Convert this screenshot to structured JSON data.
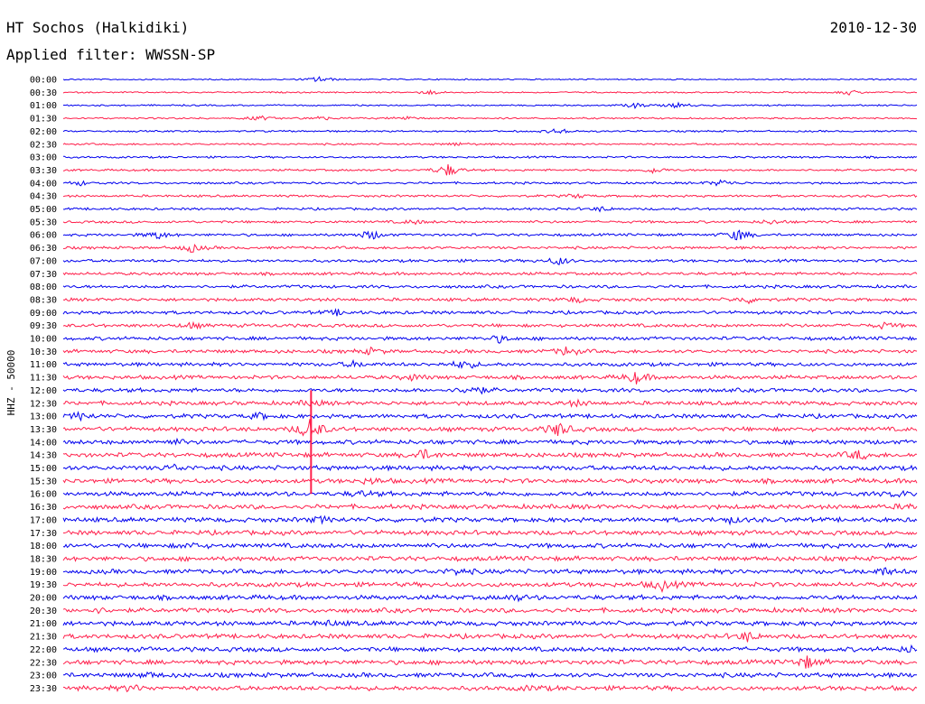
{
  "header": {
    "station": "HT Sochos (Halkidiki)",
    "date": "2010-12-30",
    "filter": "Applied filter: WWSSN-SP"
  },
  "chart_data": {
    "type": "line",
    "ylabel": "HHZ - 50000",
    "colors": {
      "even": "#0000ee",
      "odd": "#ff1f4b"
    },
    "rows": [
      {
        "time": "00:00",
        "events": [
          [
            0.3,
            1.6
          ]
        ]
      },
      {
        "time": "00:30",
        "events": [
          [
            0.43,
            1.0
          ],
          [
            0.92,
            1.2
          ]
        ]
      },
      {
        "time": "01:00",
        "events": [
          [
            0.67,
            1.3
          ],
          [
            0.72,
            1.3
          ]
        ]
      },
      {
        "time": "01:30",
        "events": [
          [
            0.23,
            1.2
          ],
          [
            0.3,
            1.0
          ],
          [
            0.4,
            1.0
          ]
        ]
      },
      {
        "time": "02:00",
        "events": [
          [
            0.58,
            1.5
          ]
        ]
      },
      {
        "time": "02:30",
        "events": [
          [
            0.46,
            0.8
          ]
        ]
      },
      {
        "time": "03:00",
        "events": []
      },
      {
        "time": "03:30",
        "events": [
          [
            0.45,
            3.2
          ],
          [
            0.69,
            1.4
          ]
        ]
      },
      {
        "time": "04:00",
        "events": [
          [
            0.77,
            1.6
          ],
          [
            0.02,
            1.0
          ]
        ]
      },
      {
        "time": "04:30",
        "events": [
          [
            0.6,
            1.0
          ]
        ]
      },
      {
        "time": "05:00",
        "events": [
          [
            0.63,
            1.0
          ]
        ]
      },
      {
        "time": "05:30",
        "events": [
          [
            0.41,
            1.0
          ],
          [
            0.83,
            1.0
          ]
        ]
      },
      {
        "time": "06:00",
        "events": [
          [
            0.11,
            2.0
          ],
          [
            0.36,
            2.4
          ],
          [
            0.79,
            3.0
          ]
        ]
      },
      {
        "time": "06:30",
        "events": [
          [
            0.15,
            2.0
          ]
        ]
      },
      {
        "time": "07:00",
        "events": [
          [
            0.58,
            2.0
          ]
        ]
      },
      {
        "time": "07:30",
        "events": []
      },
      {
        "time": "08:00",
        "events": []
      },
      {
        "time": "08:30",
        "events": [
          [
            0.8,
            1.6
          ],
          [
            0.6,
            1.2
          ]
        ]
      },
      {
        "time": "09:00",
        "events": [
          [
            0.32,
            1.2
          ]
        ]
      },
      {
        "time": "09:30",
        "events": [
          [
            0.15,
            1.2
          ],
          [
            0.96,
            1.3
          ]
        ]
      },
      {
        "time": "10:00",
        "events": [
          [
            0.51,
            1.6
          ]
        ]
      },
      {
        "time": "10:30",
        "events": [
          [
            0.59,
            2.4
          ],
          [
            0.36,
            1.3
          ]
        ]
      },
      {
        "time": "11:00",
        "events": [
          [
            0.47,
            2.2
          ],
          [
            0.34,
            1.2
          ]
        ]
      },
      {
        "time": "11:30",
        "events": [
          [
            0.67,
            2.8
          ],
          [
            0.41,
            1.3
          ]
        ]
      },
      {
        "time": "12:00",
        "events": [
          [
            0.48,
            2.6
          ]
        ]
      },
      {
        "time": "12:30",
        "events": [
          [
            0.29,
            1.3
          ],
          [
            0.6,
            1.2
          ]
        ]
      },
      {
        "time": "13:00",
        "events": [
          [
            0.02,
            1.6
          ],
          [
            0.23,
            1.3
          ]
        ]
      },
      {
        "time": "13:30",
        "events": [
          [
            0.29,
            6.0
          ],
          [
            0.58,
            3.6
          ]
        ]
      },
      {
        "time": "14:00",
        "events": [
          [
            0.13,
            1.0
          ]
        ]
      },
      {
        "time": "14:30",
        "events": [
          [
            0.42,
            2.6
          ],
          [
            0.93,
            2.2
          ]
        ]
      },
      {
        "time": "15:00",
        "events": [
          [
            0.13,
            1.2
          ]
        ]
      },
      {
        "time": "15:30",
        "events": [
          [
            0.36,
            1.2
          ]
        ]
      },
      {
        "time": "16:00",
        "events": [
          [
            0.35,
            1.2
          ],
          [
            0.98,
            1.3
          ]
        ]
      },
      {
        "time": "16:30",
        "events": [
          [
            0.99,
            1.4
          ]
        ]
      },
      {
        "time": "17:00",
        "events": [
          [
            0.3,
            1.3
          ],
          [
            0.78,
            1.2
          ]
        ]
      },
      {
        "time": "17:30",
        "events": []
      },
      {
        "time": "18:00",
        "events": [
          [
            0.15,
            1.0
          ]
        ]
      },
      {
        "time": "18:30",
        "events": []
      },
      {
        "time": "19:00",
        "events": [
          [
            0.46,
            1.3
          ],
          [
            0.96,
            1.6
          ]
        ]
      },
      {
        "time": "19:30",
        "events": [
          [
            0.7,
            2.6
          ]
        ]
      },
      {
        "time": "20:00",
        "events": [
          [
            0.53,
            1.2
          ]
        ]
      },
      {
        "time": "20:30",
        "events": [
          [
            0.04,
            1.0
          ]
        ]
      },
      {
        "time": "21:00",
        "events": [
          [
            0.31,
            1.0
          ]
        ]
      },
      {
        "time": "21:30",
        "events": [
          [
            0.8,
            2.2
          ]
        ]
      },
      {
        "time": "22:00",
        "events": [
          [
            0.99,
            1.2
          ]
        ]
      },
      {
        "time": "22:30",
        "events": [
          [
            0.87,
            2.8
          ]
        ]
      },
      {
        "time": "23:00",
        "events": [
          [
            0.1,
            1.0
          ]
        ]
      },
      {
        "time": "23:30",
        "events": [
          [
            0.08,
            1.3
          ],
          [
            0.55,
            1.0
          ]
        ]
      }
    ],
    "spike": {
      "row_from": "12:00",
      "row_to": "16:00",
      "x": 0.29
    }
  }
}
